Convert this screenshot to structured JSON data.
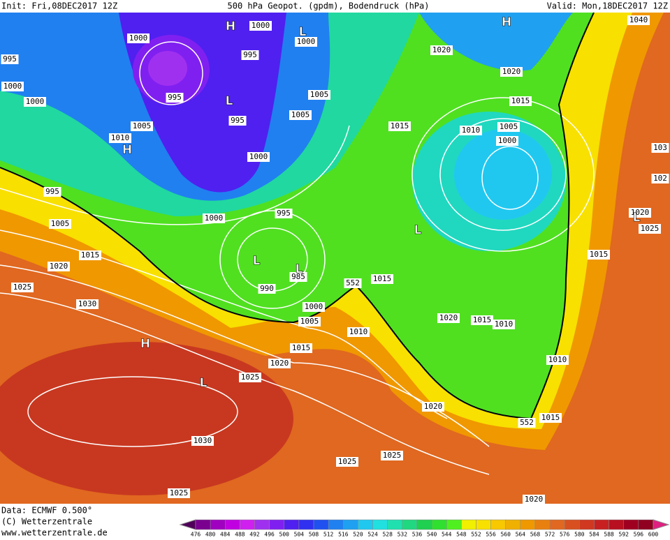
{
  "header": {
    "init": "Init: Fri,08DEC2017 12Z",
    "title": "500 hPa Geopot. (gpdm), Bodendruck (hPa)",
    "valid": "Valid: Mon,18DEC2017 12Z"
  },
  "isobar_labels": [
    "1000",
    "1000",
    "1000",
    "995",
    "1000",
    "1000",
    "995",
    "995",
    "995",
    "1005",
    "1010",
    "1000",
    "1005",
    "1005",
    "1020",
    "1020",
    "1015",
    "1015",
    "1010",
    "1005",
    "1000",
    "1040",
    "103",
    "102",
    "1020",
    "1025",
    "1015",
    "995",
    "1005",
    "1015",
    "1020",
    "1025",
    "1030",
    "1000",
    "995",
    "990",
    "985",
    "1000",
    "1005",
    "1015",
    "1010",
    "1015",
    "1020",
    "1025",
    "1020",
    "1015",
    "1010",
    "1010",
    "1020",
    "1015",
    "1030",
    "1025",
    "1025",
    "1025",
    "1020"
  ],
  "contour_labels": [
    "552",
    "552"
  ],
  "pressure_centers": [
    "H",
    "L",
    "H",
    "L",
    "H",
    "L",
    "L",
    "L",
    "H",
    "L",
    "L"
  ],
  "footer": {
    "data": "Data: ECMWF   0.500°",
    "copyright": "(C) Wetterzentrale",
    "url": "www.wetterzentrale.de"
  },
  "scale": {
    "labels": [
      476,
      480,
      484,
      488,
      492,
      496,
      500,
      504,
      508,
      512,
      516,
      520,
      524,
      528,
      532,
      536,
      540,
      544,
      548,
      552,
      556,
      560,
      564,
      568,
      572,
      576,
      580,
      584,
      588,
      592,
      596,
      600
    ],
    "colors": [
      "#50005a",
      "#7a0090",
      "#a000c0",
      "#c000e0",
      "#d020f0",
      "#a030f0",
      "#8020f0",
      "#5020f0",
      "#3030f0",
      "#2050f0",
      "#2080f0",
      "#20a0f0",
      "#20c8f0",
      "#20e0e0",
      "#20e0b0",
      "#20d880",
      "#20d050",
      "#30e030",
      "#50f020",
      "#f0f000",
      "#f8e000",
      "#f8c800",
      "#f0b000",
      "#f09800",
      "#e88010",
      "#e06820",
      "#d85020",
      "#d03820",
      "#c82020",
      "#b81020",
      "#a00020",
      "#900020",
      "#e02080"
    ]
  }
}
